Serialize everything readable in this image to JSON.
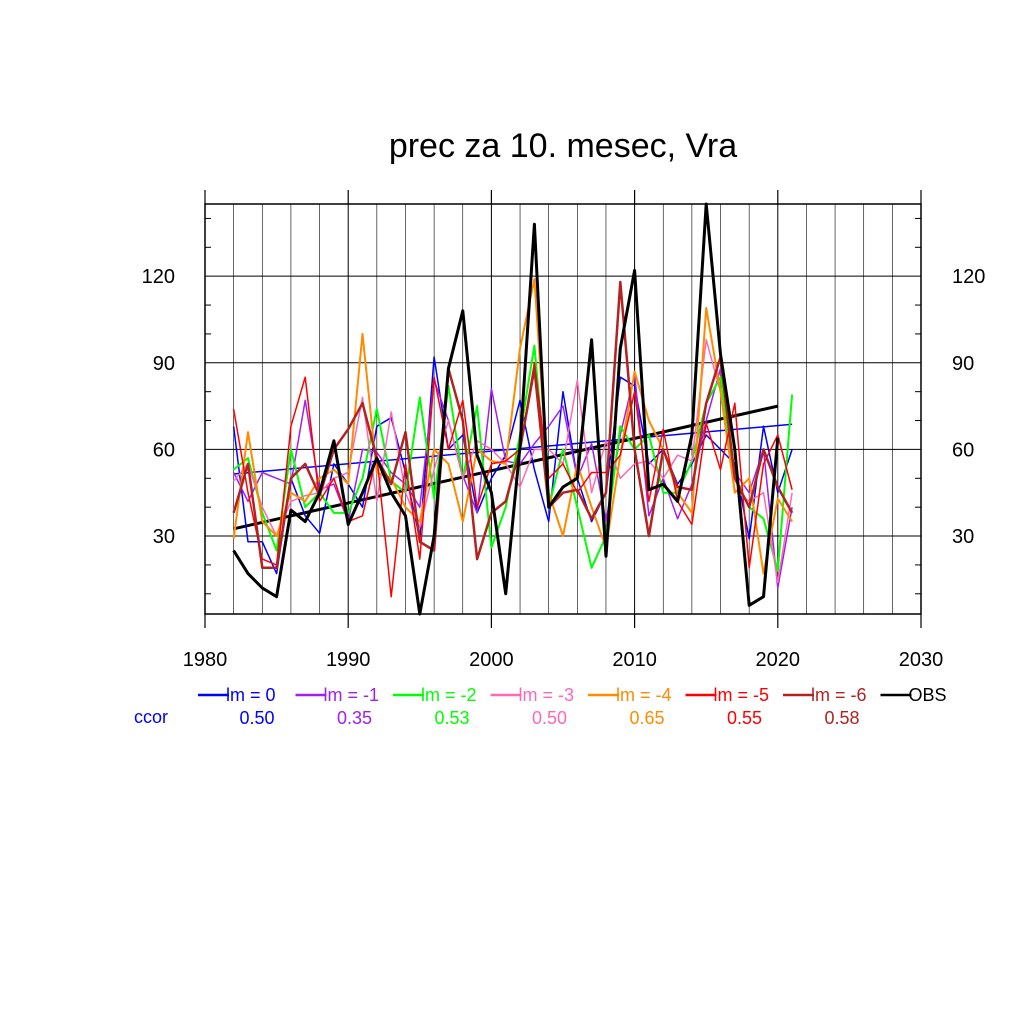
{
  "chart_data": {
    "type": "line",
    "title": "prec za 10. mesec, Vra",
    "xlabel": "",
    "ylabel": "",
    "xlim": [
      1980,
      2030
    ],
    "ylim": [
      3,
      145
    ],
    "x_ticks": [
      1980,
      1990,
      2000,
      2010,
      2020,
      2030
    ],
    "y_ticks": [
      30,
      60,
      90,
      120
    ],
    "grid": true,
    "x": [
      1982,
      1983,
      1984,
      1985,
      1986,
      1987,
      1988,
      1989,
      1990,
      1991,
      1992,
      1993,
      1994,
      1995,
      1996,
      1997,
      1998,
      1999,
      2000,
      2001,
      2002,
      2003,
      2004,
      2005,
      2006,
      2007,
      2008,
      2009,
      2010,
      2011,
      2012,
      2013,
      2014,
      2015,
      2016,
      2017,
      2018,
      2019,
      2020,
      2021
    ],
    "series": [
      {
        "name": "lm = 0",
        "color": "#0000ff",
        "width": 1.5,
        "values": [
          68,
          28,
          28,
          17,
          50,
          37,
          31,
          55,
          48,
          40,
          68,
          71,
          52,
          29,
          92,
          60,
          65,
          38,
          50,
          58,
          77,
          53,
          35,
          80,
          50,
          35,
          45,
          85,
          82,
          55,
          60,
          48,
          55,
          65,
          60,
          55,
          29,
          68,
          45,
          60
        ],
        "trend": [
          51.5,
          68.7
        ]
      },
      {
        "name": "lm = -1",
        "color": "#a020f0",
        "width": 1.5,
        "values": [
          52,
          42,
          52,
          50,
          48,
          77,
          46,
          48,
          35,
          60,
          59,
          52,
          48,
          40,
          84,
          70,
          51,
          38,
          81,
          56,
          55,
          62,
          68,
          75,
          50,
          62,
          35,
          65,
          86,
          37,
          50,
          36,
          48,
          70,
          88,
          52,
          45,
          60,
          12,
          40
        ]
      },
      {
        "name": "lm = -2",
        "color": "#00ff00",
        "width": 2,
        "values": [
          53,
          57,
          38,
          25,
          60,
          40,
          45,
          38,
          38,
          50,
          74,
          49,
          45,
          78,
          43,
          82,
          50,
          75,
          26,
          40,
          65,
          96,
          40,
          60,
          40,
          19,
          30,
          68,
          60,
          65,
          45,
          45,
          56,
          76,
          85,
          50,
          40,
          36,
          18,
          79
        ]
      },
      {
        "name": "lm = -3",
        "color": "#ff69b4",
        "width": 1.5,
        "values": [
          49,
          55,
          40,
          30,
          42,
          44,
          45,
          50,
          52,
          78,
          42,
          73,
          45,
          33,
          53,
          70,
          50,
          63,
          60,
          55,
          47,
          60,
          60,
          55,
          84,
          45,
          63,
          50,
          55,
          56,
          50,
          58,
          56,
          98,
          80,
          46,
          42,
          45,
          14,
          45
        ]
      },
      {
        "name": "lm = -4",
        "color": "#ff8c00",
        "width": 2,
        "values": [
          29,
          66,
          35,
          30,
          45,
          42,
          50,
          53,
          48,
          100,
          52,
          50,
          40,
          35,
          60,
          55,
          35,
          60,
          56,
          55,
          95,
          119,
          45,
          30,
          55,
          40,
          26,
          58,
          87,
          70,
          60,
          45,
          38,
          109,
          80,
          45,
          50,
          17,
          43,
          35
        ]
      },
      {
        "name": "lm = -5",
        "color": "#ff0000",
        "width": 1.5,
        "values": [
          74,
          45,
          22,
          20,
          68,
          85,
          42,
          50,
          35,
          37,
          58,
          9,
          55,
          22,
          85,
          60,
          77,
          40,
          55,
          56,
          60,
          90,
          50,
          55,
          45,
          52,
          52,
          58,
          80,
          42,
          67,
          42,
          34,
          69,
          53,
          76,
          19,
          55,
          65,
          46
        ]
      },
      {
        "name": "lm = -6",
        "color": "#b22222",
        "width": 2.5,
        "values": [
          38,
          55,
          19,
          19,
          50,
          55,
          44,
          60,
          67,
          76,
          57,
          48,
          66,
          28,
          25,
          88,
          70,
          22,
          38,
          42,
          60,
          88,
          40,
          45,
          46,
          36,
          45,
          118,
          60,
          30,
          60,
          47,
          46,
          76,
          92,
          50,
          40,
          60,
          47,
          38
        ]
      },
      {
        "name": "OBS",
        "color": "#000000",
        "width": 3,
        "values": [
          25,
          17,
          12,
          9,
          39,
          35,
          45,
          63,
          34,
          45,
          57,
          45,
          37,
          3,
          30,
          88,
          108,
          58,
          45,
          10,
          61,
          138,
          40,
          47,
          50,
          98,
          23,
          95,
          122,
          46,
          48,
          42,
          65,
          145,
          93,
          60,
          6,
          9,
          64,
          null
        ],
        "trend": [
          32.5,
          75.0
        ]
      }
    ],
    "legend": {
      "placement": "bottom",
      "ccor_label": "ccor",
      "ccor_label_color": "#0000ff",
      "entries": [
        {
          "label": "lm = 0",
          "ccor": "0.50",
          "color": "#0000ff"
        },
        {
          "label": "lm = -1",
          "ccor": "0.35",
          "color": "#a020f0"
        },
        {
          "label": "lm = -2",
          "ccor": "0.53",
          "color": "#00ff00"
        },
        {
          "label": "lm = -3",
          "ccor": "0.50",
          "color": "#ff69b4"
        },
        {
          "label": "lm = -4",
          "ccor": "0.65",
          "color": "#ff8c00"
        },
        {
          "label": "lm = -5",
          "ccor": "0.55",
          "color": "#ff0000"
        },
        {
          "label": "lm = -6",
          "ccor": "0.58",
          "color": "#b22222"
        },
        {
          "label": "OBS",
          "ccor": "",
          "color": "#000000"
        }
      ]
    }
  }
}
